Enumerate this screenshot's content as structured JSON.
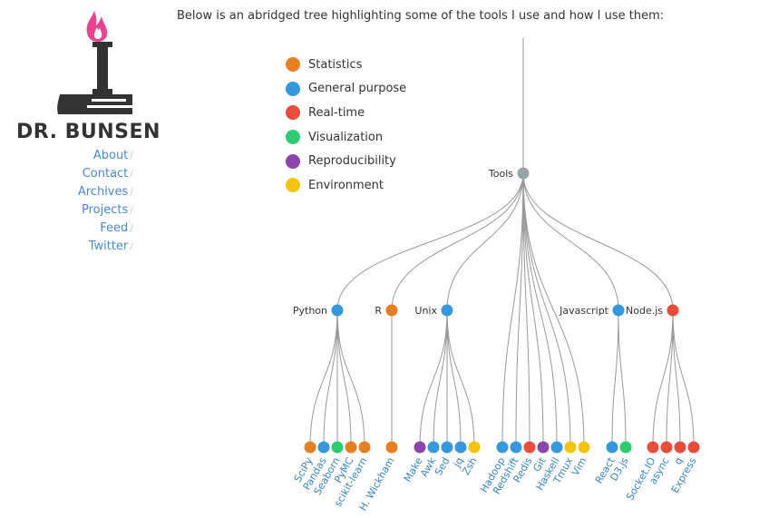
{
  "site": {
    "brand": "DR. BUNSEN",
    "nav": [
      {
        "label": "About",
        "name": "nav-about"
      },
      {
        "label": "Contact",
        "name": "nav-contact"
      },
      {
        "label": "Archives",
        "name": "nav-archives"
      },
      {
        "label": "Projects",
        "name": "nav-projects"
      },
      {
        "label": "Feed",
        "name": "nav-feed"
      },
      {
        "label": "Twitter",
        "name": "nav-twitter"
      }
    ]
  },
  "intro": "Below is an abridged tree highlighting some of the tools I use and how I use them:",
  "colors": {
    "Statistics": "#e67e22",
    "General purpose": "#3498db",
    "Real-time": "#e74c3c",
    "Visualization": "#2ecc71",
    "Reproducibility": "#8e44ad",
    "Environment": "#f1c40f",
    "root": "#95a5a6"
  },
  "legend": [
    {
      "label": "Statistics",
      "color": "#e67e22"
    },
    {
      "label": "General purpose",
      "color": "#3498db"
    },
    {
      "label": "Real-time",
      "color": "#e74c3c"
    },
    {
      "label": "Visualization",
      "color": "#2ecc71"
    },
    {
      "label": "Reproducibility",
      "color": "#8e44ad"
    },
    {
      "label": "Environment",
      "color": "#f1c40f"
    }
  ],
  "tree": {
    "name": "Tools",
    "category": "root",
    "children": [
      {
        "name": "Python",
        "category": "General purpose",
        "children": [
          {
            "name": "SciPy",
            "category": "Statistics"
          },
          {
            "name": "Pandas",
            "category": "General purpose"
          },
          {
            "name": "Seaborn",
            "category": "Visualization"
          },
          {
            "name": "PyMC",
            "category": "Statistics"
          },
          {
            "name": "scikit-learn",
            "category": "Statistics"
          }
        ]
      },
      {
        "name": "R",
        "category": "Statistics",
        "children": [
          {
            "name": "H. Wickham",
            "category": "Statistics"
          }
        ]
      },
      {
        "name": "Unix",
        "category": "General purpose",
        "children": [
          {
            "name": "Make",
            "category": "Reproducibility"
          },
          {
            "name": "Awk",
            "category": "General purpose"
          },
          {
            "name": "Sed",
            "category": "General purpose"
          },
          {
            "name": "jq",
            "category": "General purpose"
          },
          {
            "name": "Zsh",
            "category": "Environment"
          }
        ]
      },
      {
        "name": "Hadoop",
        "category": "General purpose"
      },
      {
        "name": "Redshift",
        "category": "General purpose"
      },
      {
        "name": "Redis",
        "category": "Real-time"
      },
      {
        "name": "Git",
        "category": "Reproducibility"
      },
      {
        "name": "Haskell",
        "category": "General purpose"
      },
      {
        "name": "Tmux",
        "category": "Environment"
      },
      {
        "name": "Vim",
        "category": "Environment"
      },
      {
        "name": "Javascript",
        "category": "General purpose",
        "children": [
          {
            "name": "React",
            "category": "General purpose"
          },
          {
            "name": "D3.js",
            "category": "Visualization"
          }
        ]
      },
      {
        "name": "Node.js",
        "category": "Real-time",
        "children": [
          {
            "name": "Socket.IO",
            "category": "Real-time"
          },
          {
            "name": "async",
            "category": "Real-time"
          },
          {
            "name": "q",
            "category": "Real-time"
          },
          {
            "name": "Express",
            "category": "Real-time"
          }
        ]
      }
    ]
  }
}
